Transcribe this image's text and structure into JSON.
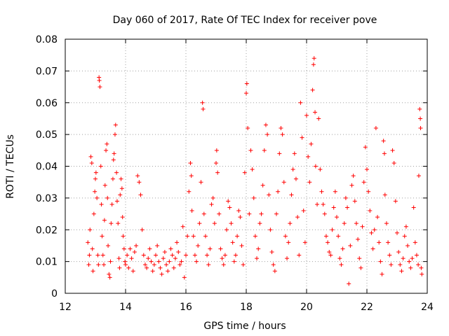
{
  "chart_data": {
    "type": "scatter",
    "title": "Day 060 of 2017, Rate Of TEC Index for receiver pove",
    "xlabel": "GPS time / hours",
    "ylabel": "ROTI / TECUs",
    "xlim": [
      12,
      24
    ],
    "ylim": [
      0,
      0.08
    ],
    "xticks": [
      "12",
      "14",
      "16",
      "18",
      "20",
      "22",
      "24"
    ],
    "yticks": [
      "0",
      "0.01",
      "0.02",
      "0.03",
      "0.04",
      "0.05",
      "0.06",
      "0.07",
      "0.08"
    ],
    "grid": true,
    "marker": "plus",
    "color": "#ff0000",
    "series": [
      {
        "points": [
          [
            12.75,
            0.016
          ],
          [
            12.78,
            0.009
          ],
          [
            12.8,
            0.012
          ],
          [
            12.82,
            0.02
          ],
          [
            12.85,
            0.043
          ],
          [
            12.88,
            0.041
          ],
          [
            12.9,
            0.014
          ],
          [
            12.92,
            0.007
          ],
          [
            12.95,
            0.025
          ],
          [
            12.98,
            0.032
          ],
          [
            13.0,
            0.036
          ],
          [
            13.02,
            0.038
          ],
          [
            13.05,
            0.03
          ],
          [
            13.08,
            0.012
          ],
          [
            13.1,
            0.009
          ],
          [
            13.12,
            0.068
          ],
          [
            13.13,
            0.067
          ],
          [
            13.15,
            0.065
          ],
          [
            13.18,
            0.04
          ],
          [
            13.2,
            0.028
          ],
          [
            13.22,
            0.018
          ],
          [
            13.25,
            0.012
          ],
          [
            13.28,
            0.009
          ],
          [
            13.3,
            0.023
          ],
          [
            13.32,
            0.034
          ],
          [
            13.35,
            0.045
          ],
          [
            13.38,
            0.047
          ],
          [
            13.4,
            0.03
          ],
          [
            13.42,
            0.015
          ],
          [
            13.45,
            0.006
          ],
          [
            13.48,
            0.005
          ],
          [
            13.5,
            0.01
          ],
          [
            13.52,
            0.022
          ],
          [
            13.55,
            0.028
          ],
          [
            13.58,
            0.036
          ],
          [
            13.6,
            0.042
          ],
          [
            13.62,
            0.044
          ],
          [
            13.65,
            0.05
          ],
          [
            13.67,
            0.053
          ],
          [
            13.7,
            0.038
          ],
          [
            13.72,
            0.029
          ],
          [
            13.75,
            0.022
          ],
          [
            13.78,
            0.011
          ],
          [
            13.8,
            0.008
          ],
          [
            13.82,
            0.031
          ],
          [
            13.85,
            0.036
          ],
          [
            13.88,
            0.033
          ],
          [
            13.9,
            0.024
          ],
          [
            13.92,
            0.018
          ],
          [
            13.95,
            0.014
          ],
          [
            13.98,
            0.01
          ],
          [
            14.0,
            0.009
          ],
          [
            14.05,
            0.012
          ],
          [
            14.1,
            0.008
          ],
          [
            14.15,
            0.014
          ],
          [
            14.2,
            0.011
          ],
          [
            14.25,
            0.007
          ],
          [
            14.3,
            0.013
          ],
          [
            14.35,
            0.015
          ],
          [
            14.4,
            0.037
          ],
          [
            14.45,
            0.035
          ],
          [
            14.5,
            0.031
          ],
          [
            14.55,
            0.02
          ],
          [
            14.6,
            0.012
          ],
          [
            14.65,
            0.009
          ],
          [
            14.7,
            0.008
          ],
          [
            14.75,
            0.011
          ],
          [
            14.8,
            0.014
          ],
          [
            14.85,
            0.01
          ],
          [
            14.9,
            0.007
          ],
          [
            14.95,
            0.009
          ],
          [
            15.0,
            0.012
          ],
          [
            15.05,
            0.015
          ],
          [
            15.1,
            0.01
          ],
          [
            15.15,
            0.008
          ],
          [
            15.2,
            0.006
          ],
          [
            15.25,
            0.011
          ],
          [
            15.3,
            0.013
          ],
          [
            15.35,
            0.009
          ],
          [
            15.4,
            0.007
          ],
          [
            15.45,
            0.01
          ],
          [
            15.5,
            0.014
          ],
          [
            15.55,
            0.012
          ],
          [
            15.6,
            0.008
          ],
          [
            15.65,
            0.011
          ],
          [
            15.7,
            0.016
          ],
          [
            15.75,
            0.013
          ],
          [
            15.8,
            0.009
          ],
          [
            15.85,
            0.01
          ],
          [
            15.9,
            0.021
          ],
          [
            15.95,
            0.005
          ],
          [
            16.0,
            0.012
          ],
          [
            16.05,
            0.018
          ],
          [
            16.1,
            0.032
          ],
          [
            16.15,
            0.041
          ],
          [
            16.18,
            0.037
          ],
          [
            16.2,
            0.026
          ],
          [
            16.25,
            0.018
          ],
          [
            16.3,
            0.012
          ],
          [
            16.35,
            0.01
          ],
          [
            16.4,
            0.015
          ],
          [
            16.45,
            0.022
          ],
          [
            16.5,
            0.035
          ],
          [
            16.55,
            0.06
          ],
          [
            16.57,
            0.058
          ],
          [
            16.6,
            0.025
          ],
          [
            16.65,
            0.018
          ],
          [
            16.7,
            0.012
          ],
          [
            16.75,
            0.009
          ],
          [
            16.8,
            0.014
          ],
          [
            16.85,
            0.028
          ],
          [
            16.9,
            0.03
          ],
          [
            16.95,
            0.022
          ],
          [
            17.0,
            0.041
          ],
          [
            17.02,
            0.045
          ],
          [
            17.05,
            0.038
          ],
          [
            17.1,
            0.025
          ],
          [
            17.15,
            0.014
          ],
          [
            17.2,
            0.011
          ],
          [
            17.25,
            0.009
          ],
          [
            17.3,
            0.012
          ],
          [
            17.35,
            0.02
          ],
          [
            17.4,
            0.029
          ],
          [
            17.45,
            0.027
          ],
          [
            17.5,
            0.022
          ],
          [
            17.55,
            0.016
          ],
          [
            17.6,
            0.01
          ],
          [
            17.65,
            0.012
          ],
          [
            17.7,
            0.018
          ],
          [
            17.75,
            0.026
          ],
          [
            17.8,
            0.024
          ],
          [
            17.85,
            0.015
          ],
          [
            17.9,
            0.009
          ],
          [
            17.95,
            0.038
          ],
          [
            18.0,
            0.063
          ],
          [
            18.02,
            0.066
          ],
          [
            18.05,
            0.052
          ],
          [
            18.1,
            0.025
          ],
          [
            18.15,
            0.045
          ],
          [
            18.2,
            0.039
          ],
          [
            18.25,
            0.03
          ],
          [
            18.3,
            0.018
          ],
          [
            18.35,
            0.011
          ],
          [
            18.4,
            0.014
          ],
          [
            18.45,
            0.022
          ],
          [
            18.5,
            0.025
          ],
          [
            18.55,
            0.034
          ],
          [
            18.6,
            0.045
          ],
          [
            18.65,
            0.053
          ],
          [
            18.7,
            0.05
          ],
          [
            18.75,
            0.031
          ],
          [
            18.8,
            0.02
          ],
          [
            18.85,
            0.013
          ],
          [
            18.9,
            0.009
          ],
          [
            18.95,
            0.007
          ],
          [
            19.0,
            0.025
          ],
          [
            19.05,
            0.032
          ],
          [
            19.1,
            0.044
          ],
          [
            19.15,
            0.052
          ],
          [
            19.2,
            0.05
          ],
          [
            19.25,
            0.035
          ],
          [
            19.3,
            0.018
          ],
          [
            19.35,
            0.011
          ],
          [
            19.4,
            0.016
          ],
          [
            19.45,
            0.022
          ],
          [
            19.5,
            0.031
          ],
          [
            19.55,
            0.039
          ],
          [
            19.6,
            0.044
          ],
          [
            19.65,
            0.036
          ],
          [
            19.7,
            0.024
          ],
          [
            19.75,
            0.012
          ],
          [
            19.8,
            0.06
          ],
          [
            19.85,
            0.049
          ],
          [
            19.9,
            0.026
          ],
          [
            19.95,
            0.016
          ],
          [
            20.0,
            0.056
          ],
          [
            20.05,
            0.043
          ],
          [
            20.1,
            0.035
          ],
          [
            20.15,
            0.047
          ],
          [
            20.2,
            0.064
          ],
          [
            20.23,
            0.072
          ],
          [
            20.25,
            0.074
          ],
          [
            20.28,
            0.057
          ],
          [
            20.3,
            0.04
          ],
          [
            20.35,
            0.028
          ],
          [
            20.4,
            0.055
          ],
          [
            20.45,
            0.039
          ],
          [
            20.5,
            0.032
          ],
          [
            20.55,
            0.028
          ],
          [
            20.6,
            0.025
          ],
          [
            20.65,
            0.018
          ],
          [
            20.7,
            0.016
          ],
          [
            20.75,
            0.013
          ],
          [
            20.8,
            0.012
          ],
          [
            20.85,
            0.02
          ],
          [
            20.9,
            0.027
          ],
          [
            20.95,
            0.032
          ],
          [
            21.0,
            0.024
          ],
          [
            21.05,
            0.018
          ],
          [
            21.1,
            0.011
          ],
          [
            21.15,
            0.009
          ],
          [
            21.2,
            0.014
          ],
          [
            21.25,
            0.022
          ],
          [
            21.3,
            0.03
          ],
          [
            21.35,
            0.027
          ],
          [
            21.4,
            0.003
          ],
          [
            21.45,
            0.015
          ],
          [
            21.5,
            0.034
          ],
          [
            21.55,
            0.037
          ],
          [
            21.6,
            0.029
          ],
          [
            21.65,
            0.022
          ],
          [
            21.7,
            0.017
          ],
          [
            21.75,
            0.011
          ],
          [
            21.8,
            0.008
          ],
          [
            21.85,
            0.021
          ],
          [
            21.9,
            0.035
          ],
          [
            21.95,
            0.046
          ],
          [
            22.0,
            0.039
          ],
          [
            22.05,
            0.032
          ],
          [
            22.1,
            0.026
          ],
          [
            22.15,
            0.019
          ],
          [
            22.2,
            0.014
          ],
          [
            22.25,
            0.02
          ],
          [
            22.3,
            0.052
          ],
          [
            22.35,
            0.024
          ],
          [
            22.4,
            0.016
          ],
          [
            22.45,
            0.01
          ],
          [
            22.5,
            0.006
          ],
          [
            22.55,
            0.048
          ],
          [
            22.58,
            0.044
          ],
          [
            22.6,
            0.031
          ],
          [
            22.65,
            0.022
          ],
          [
            22.7,
            0.016
          ],
          [
            22.75,
            0.012
          ],
          [
            22.8,
            0.009
          ],
          [
            22.85,
            0.045
          ],
          [
            22.9,
            0.041
          ],
          [
            22.95,
            0.029
          ],
          [
            23.0,
            0.019
          ],
          [
            23.05,
            0.013
          ],
          [
            23.1,
            0.009
          ],
          [
            23.15,
            0.007
          ],
          [
            23.2,
            0.011
          ],
          [
            23.25,
            0.018
          ],
          [
            23.3,
            0.021
          ],
          [
            23.35,
            0.015
          ],
          [
            23.4,
            0.01
          ],
          [
            23.45,
            0.008
          ],
          [
            23.5,
            0.011
          ],
          [
            23.55,
            0.027
          ],
          [
            23.6,
            0.016
          ],
          [
            23.65,
            0.012
          ],
          [
            23.7,
            0.009
          ],
          [
            23.72,
            0.037
          ],
          [
            23.75,
            0.058
          ],
          [
            23.77,
            0.055
          ],
          [
            23.78,
            0.052
          ],
          [
            23.8,
            0.008
          ],
          [
            23.82,
            0.006
          ]
        ]
      }
    ]
  }
}
